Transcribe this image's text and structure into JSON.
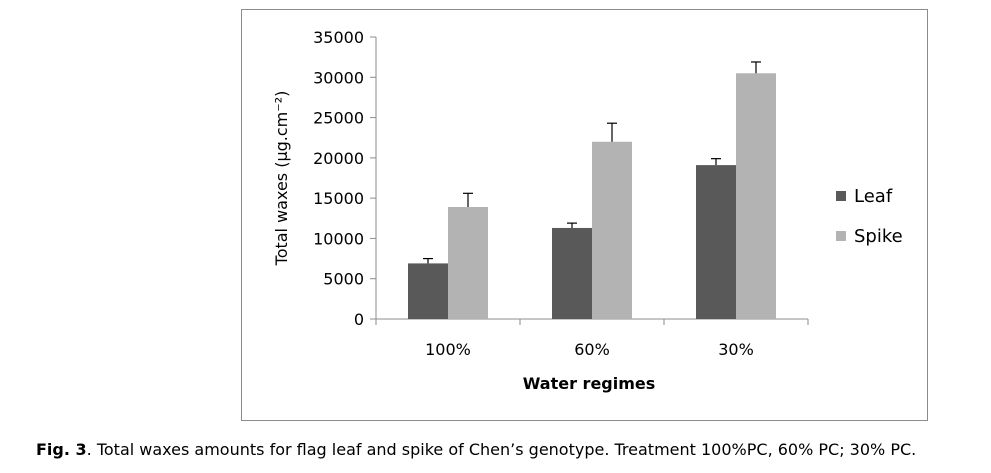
{
  "chart_data": {
    "type": "bar",
    "categories": [
      "100%",
      "60%",
      "30%"
    ],
    "series": [
      {
        "name": "Leaf",
        "values": [
          6900,
          11300,
          19100
        ],
        "errors": [
          600,
          600,
          800
        ],
        "color": "#595959"
      },
      {
        "name": "Spike",
        "values": [
          13900,
          22000,
          30500
        ],
        "errors": [
          1700,
          2300,
          1400
        ],
        "color": "#b3b3b3"
      }
    ],
    "title": "",
    "xlabel": "Water regimes",
    "ylabel": "Total waxes (µg.cm⁻²)",
    "ylim": [
      0,
      35000
    ],
    "yticks": [
      "0",
      "5000",
      "10000",
      "15000",
      "20000",
      "25000",
      "30000",
      "35000"
    ],
    "grid": false,
    "legend_position": "right"
  },
  "caption": {
    "label": "Fig. 3",
    "text": ". Total waxes amounts for flag leaf and spike of Chen’s genotype. Treatment 100%PC, 60% PC; 30% PC."
  }
}
